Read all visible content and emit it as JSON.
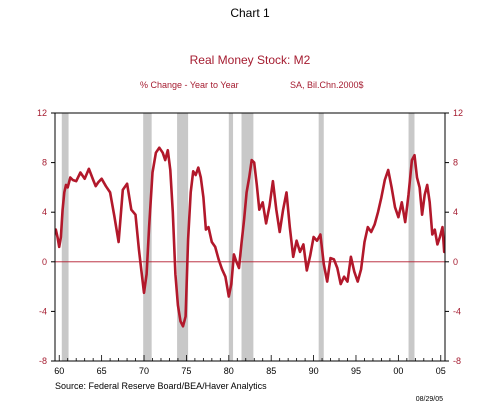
{
  "header": {
    "chart_number": "Chart 1"
  },
  "footer": {
    "source": "Source:  Federal Reserve Board/BEA/Haver Analytics",
    "date": "08/29/05"
  },
  "colors": {
    "series": "#B2182B",
    "title": "#A51C30",
    "recession": "#C8C8C8",
    "axis": "#000000",
    "zero_line": "#B2182B"
  },
  "chart_data": {
    "type": "line",
    "title": "Real Money Stock: M2",
    "subtitle_left": "% Change - Year to Year",
    "subtitle_right": "SA, Bil.Chn.2000$",
    "xlim": [
      1959.5,
      2005.5
    ],
    "ylim": [
      -8,
      12
    ],
    "y_ticks": [
      -8,
      -4,
      0,
      4,
      8,
      12
    ],
    "x_ticks": [
      1960,
      1965,
      1970,
      1975,
      1980,
      1985,
      1990,
      1995,
      2000,
      2005
    ],
    "x_tick_labels": [
      "60",
      "65",
      "70",
      "75",
      "80",
      "85",
      "90",
      "95",
      "00",
      "05"
    ],
    "grid": false,
    "zero_line": true,
    "recessions": [
      [
        1960.3,
        1961.1
      ],
      [
        1969.9,
        1970.9
      ],
      [
        1973.9,
        1975.2
      ],
      [
        1980.0,
        1980.5
      ],
      [
        1981.5,
        1982.9
      ],
      [
        1990.6,
        1991.2
      ],
      [
        2001.2,
        2001.9
      ]
    ],
    "series": [
      {
        "x": [
          1959.6,
          1959.8,
          1960.0,
          1960.2,
          1960.4,
          1960.6,
          1960.8,
          1961.0,
          1961.3,
          1961.6,
          1962.0,
          1962.5,
          1963.0,
          1963.5,
          1964.0,
          1964.3,
          1964.6,
          1965.0,
          1965.5,
          1966.0,
          1966.5,
          1967.0,
          1967.5,
          1968.0,
          1968.5,
          1969.0,
          1969.4,
          1969.7,
          1970.0,
          1970.3,
          1970.6,
          1971.0,
          1971.4,
          1971.8,
          1972.2,
          1972.5,
          1972.8,
          1973.1,
          1973.4,
          1973.7,
          1974.0,
          1974.3,
          1974.6,
          1974.9,
          1975.2,
          1975.5,
          1975.8,
          1976.1,
          1976.4,
          1976.7,
          1977.0,
          1977.3,
          1977.6,
          1978.0,
          1978.4,
          1978.8,
          1979.2,
          1979.6,
          1980.0,
          1980.3,
          1980.6,
          1980.9,
          1981.2,
          1981.5,
          1981.8,
          1982.1,
          1982.4,
          1982.7,
          1983.0,
          1983.3,
          1983.6,
          1984.0,
          1984.4,
          1984.8,
          1985.2,
          1985.6,
          1986.0,
          1986.4,
          1986.8,
          1987.2,
          1987.6,
          1988.0,
          1988.4,
          1988.8,
          1989.2,
          1989.6,
          1990.0,
          1990.4,
          1990.8,
          1991.2,
          1991.6,
          1992.0,
          1992.4,
          1992.8,
          1993.2,
          1993.6,
          1994.0,
          1994.4,
          1994.8,
          1995.2,
          1995.6,
          1996.0,
          1996.4,
          1996.8,
          1997.2,
          1997.6,
          1998.0,
          1998.4,
          1998.8,
          1999.2,
          1999.6,
          2000.0,
          2000.4,
          2000.8,
          2001.2,
          2001.6,
          2001.9,
          2002.2,
          2002.5,
          2002.8,
          2003.1,
          2003.4,
          2003.7,
          2004.0,
          2004.3,
          2004.6,
          2004.9,
          2005.2,
          2005.4
        ],
        "values": [
          2.6,
          2.0,
          1.2,
          2.0,
          4.2,
          5.6,
          6.2,
          6.0,
          6.8,
          6.6,
          6.5,
          7.2,
          6.7,
          7.5,
          6.6,
          6.1,
          6.4,
          6.7,
          6.1,
          5.6,
          3.7,
          1.6,
          5.8,
          6.3,
          4.2,
          3.8,
          1.0,
          -0.8,
          -2.5,
          -1.0,
          2.8,
          7.2,
          8.8,
          9.2,
          8.8,
          8.2,
          9.0,
          7.4,
          4.0,
          -1.0,
          -3.5,
          -4.8,
          -5.2,
          -4.4,
          1.8,
          5.6,
          7.3,
          7.0,
          7.6,
          6.8,
          5.2,
          2.6,
          2.8,
          1.6,
          1.2,
          0.2,
          -0.6,
          -1.2,
          -2.8,
          -1.8,
          0.6,
          0.0,
          -0.5,
          1.5,
          3.4,
          5.6,
          6.8,
          8.2,
          8.0,
          6.2,
          4.2,
          4.8,
          3.1,
          4.5,
          6.5,
          4.2,
          2.4,
          4.2,
          5.6,
          2.8,
          0.4,
          1.7,
          0.8,
          1.4,
          -0.7,
          0.5,
          2.0,
          1.7,
          2.2,
          -0.2,
          -1.6,
          0.3,
          0.2,
          -0.5,
          -1.8,
          -1.2,
          -1.6,
          0.4,
          -0.8,
          -1.6,
          -0.6,
          1.6,
          2.8,
          2.4,
          3.0,
          4.0,
          5.2,
          6.6,
          7.4,
          6.0,
          4.4,
          3.6,
          4.8,
          3.2,
          5.4,
          8.2,
          8.6,
          6.8,
          6.0,
          3.8,
          5.4,
          6.2,
          4.8,
          2.2,
          2.6,
          1.4,
          2.0,
          2.8,
          0.8
        ]
      }
    ]
  }
}
